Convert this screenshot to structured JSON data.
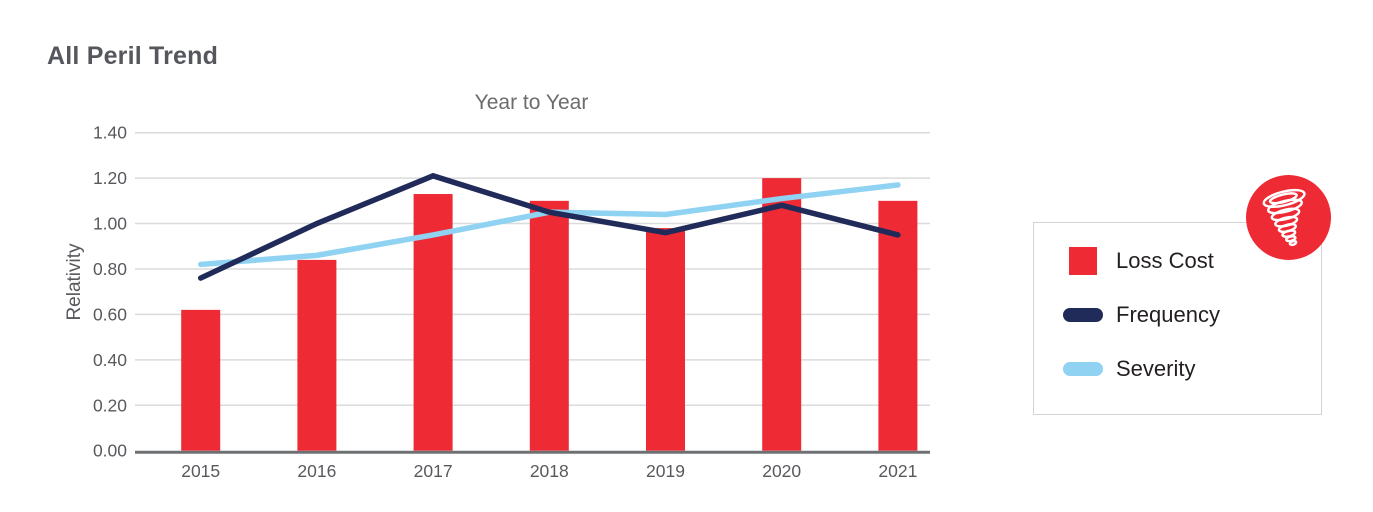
{
  "page": {
    "title": "All Peril Trend"
  },
  "chart_data": {
    "type": "bar+line",
    "title": "Year to Year",
    "ylabel": "Relativity",
    "xlabel": "",
    "categories": [
      "2015",
      "2016",
      "2017",
      "2018",
      "2019",
      "2020",
      "2021"
    ],
    "series": [
      {
        "name": "Loss Cost",
        "type": "bar",
        "color": "#EE2A35",
        "values": [
          0.62,
          0.84,
          1.13,
          1.1,
          0.98,
          1.2,
          1.1
        ]
      },
      {
        "name": "Frequency",
        "type": "line",
        "color": "#212B59",
        "values": [
          0.76,
          1.0,
          1.21,
          1.05,
          0.96,
          1.08,
          0.95
        ]
      },
      {
        "name": "Severity",
        "type": "line",
        "color": "#8FD2F2",
        "values": [
          0.82,
          0.86,
          0.95,
          1.05,
          1.04,
          1.11,
          1.17
        ]
      }
    ],
    "ylim": [
      0.0,
      1.4
    ],
    "yticks": [
      "0.00",
      "0.20",
      "0.40",
      "0.60",
      "0.80",
      "1.00",
      "1.20",
      "1.40"
    ],
    "grid": true,
    "legend_position": "right",
    "colors": {
      "grid": "#DADBDC",
      "axis": "#6E7072",
      "tick": "#57595C"
    }
  },
  "legend": {
    "items": [
      {
        "label": "Loss Cost",
        "swatch": "square",
        "color": "#EE2A35"
      },
      {
        "label": "Frequency",
        "swatch": "pill",
        "color": "#212B59"
      },
      {
        "label": "Severity",
        "swatch": "pill",
        "color": "#8FD2F2"
      }
    ]
  },
  "icons": {
    "badge": "tornado-icon"
  }
}
